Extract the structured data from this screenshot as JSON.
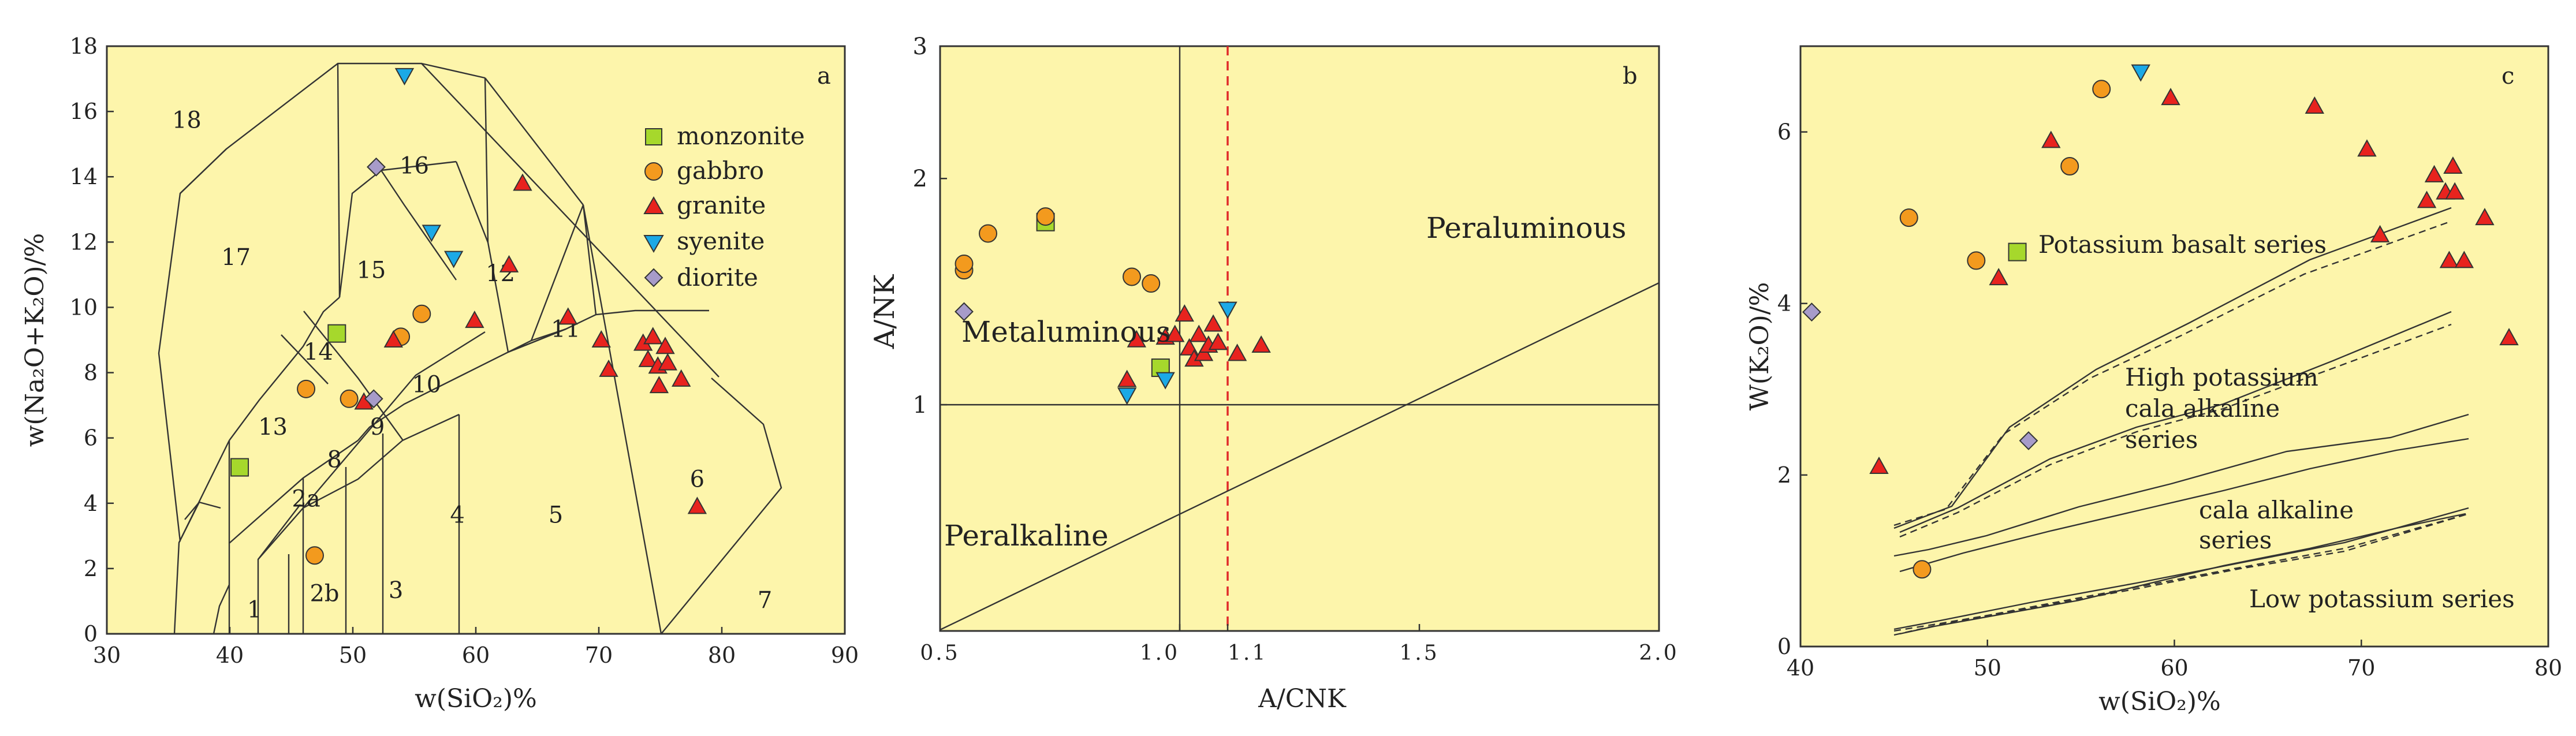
{
  "colors": {
    "plot_bg": "#fdf5ab",
    "monzonite": "#a6d82c",
    "gabbro": "#f39a1e",
    "granite": "#e8231e",
    "syenite": "#1ba9e6",
    "diorite": "#a79bc9"
  },
  "chart_data": [
    {
      "type": "scatter",
      "panel": "a",
      "xlabel": "w(SiO₂)%",
      "ylabel": "w(Na₂O+K₂O)/%",
      "xlim": [
        30,
        90
      ],
      "ylim": [
        0,
        18
      ],
      "xticks": [
        "30",
        "40",
        "50",
        "60",
        "70",
        "80",
        "90"
      ],
      "yticks": [
        "0",
        "2",
        "4",
        "6",
        "8",
        "10",
        "12",
        "14",
        "16",
        "18"
      ],
      "legend": [
        {
          "label": "monzonite",
          "marker": "square"
        },
        {
          "label": "gabbro",
          "marker": "circle"
        },
        {
          "label": "granite",
          "marker": "triangle"
        },
        {
          "label": "syenite",
          "marker": "triangle-down"
        },
        {
          "label": "diorite",
          "marker": "diamond"
        }
      ],
      "field_labels": [
        {
          "text": "18",
          "x": 36.5,
          "y": 15.5
        },
        {
          "text": "17",
          "x": 40.5,
          "y": 11.3
        },
        {
          "text": "16",
          "x": 55,
          "y": 14.1
        },
        {
          "text": "15",
          "x": 51.5,
          "y": 10.9
        },
        {
          "text": "14",
          "x": 47.2,
          "y": 8.4
        },
        {
          "text": "13",
          "x": 43.5,
          "y": 6.1
        },
        {
          "text": "12",
          "x": 62,
          "y": 10.8
        },
        {
          "text": "11",
          "x": 67.3,
          "y": 9.1
        },
        {
          "text": "10",
          "x": 56,
          "y": 7.4
        },
        {
          "text": "9",
          "x": 52,
          "y": 6.1
        },
        {
          "text": "8",
          "x": 48.5,
          "y": 5.1
        },
        {
          "text": "2a",
          "x": 46.2,
          "y": 3.9
        },
        {
          "text": "2b",
          "x": 47.7,
          "y": 1.0
        },
        {
          "text": "1",
          "x": 42,
          "y": 0.5
        },
        {
          "text": "3",
          "x": 53.5,
          "y": 1.1
        },
        {
          "text": "4",
          "x": 58.5,
          "y": 3.4
        },
        {
          "text": "5",
          "x": 66.5,
          "y": 3.4
        },
        {
          "text": "6",
          "x": 78,
          "y": 4.5
        },
        {
          "text": "7",
          "x": 83.5,
          "y": 0.8
        }
      ],
      "series": [
        {
          "name": "monzonite",
          "points": [
            [
              40.8,
              5.1
            ],
            [
              48.7,
              9.2
            ]
          ]
        },
        {
          "name": "gabbro",
          "points": [
            [
              46.2,
              7.5
            ],
            [
              49.7,
              7.2
            ],
            [
              53.9,
              9.1
            ],
            [
              55.6,
              9.8
            ],
            [
              46.9,
              2.4
            ]
          ]
        },
        {
          "name": "granite",
          "points": [
            [
              50.9,
              7.1
            ],
            [
              53.3,
              9.0
            ],
            [
              59.9,
              9.6
            ],
            [
              62.7,
              11.3
            ],
            [
              63.8,
              13.8
            ],
            [
              67.5,
              9.7
            ],
            [
              70.2,
              9.0
            ],
            [
              70.8,
              8.1
            ],
            [
              73.6,
              8.9
            ],
            [
              74.0,
              8.4
            ],
            [
              74.4,
              9.1
            ],
            [
              74.8,
              8.2
            ],
            [
              74.9,
              7.6
            ],
            [
              75.4,
              8.8
            ],
            [
              75.6,
              8.3
            ],
            [
              76.7,
              7.8
            ],
            [
              78.0,
              3.9
            ]
          ]
        },
        {
          "name": "syenite",
          "points": [
            [
              54.2,
              17.1
            ],
            [
              56.4,
              12.3
            ],
            [
              58.2,
              11.5
            ]
          ]
        },
        {
          "name": "diorite",
          "points": [
            [
              51.9,
              14.3
            ],
            [
              51.7,
              7.2
            ]
          ]
        }
      ]
    },
    {
      "type": "scatter",
      "panel": "b",
      "xlabel": "A/CNK",
      "ylabel": "A/NK",
      "xlim": [
        0.5,
        2.0
      ],
      "ylim": [
        0.5,
        3.0
      ],
      "yscale": "log",
      "xticks": [
        "0.5",
        "1.0",
        "1.1",
        "1.5",
        "2.0"
      ],
      "yticks": [
        "1",
        "2",
        "3"
      ],
      "field_labels": [
        "Peraluminous",
        "Metaluminous",
        "Peralkaline"
      ],
      "reference_lines": {
        "A/CNK": [
          1.0,
          1.1
        ],
        "A/NK": [
          1.0
        ]
      },
      "series": [
        {
          "name": "monzonite",
          "points": [
            [
              0.72,
              1.75
            ],
            [
              0.96,
              1.12
            ]
          ]
        },
        {
          "name": "gabbro",
          "points": [
            [
              0.55,
              1.51
            ],
            [
              0.55,
              1.54
            ],
            [
              0.6,
              1.69
            ],
            [
              0.72,
              1.78
            ],
            [
              0.9,
              1.48
            ],
            [
              0.94,
              1.45
            ]
          ]
        },
        {
          "name": "granite",
          "points": [
            [
              0.89,
              1.08
            ],
            [
              0.91,
              1.22
            ],
            [
              0.97,
              1.23
            ],
            [
              0.99,
              1.24
            ],
            [
              1.01,
              1.32
            ],
            [
              1.02,
              1.19
            ],
            [
              1.03,
              1.15
            ],
            [
              1.04,
              1.24
            ],
            [
              1.05,
              1.17
            ],
            [
              1.06,
              1.2
            ],
            [
              1.07,
              1.28
            ],
            [
              1.08,
              1.21
            ],
            [
              1.12,
              1.17
            ],
            [
              1.17,
              1.2
            ]
          ]
        },
        {
          "name": "syenite",
          "points": [
            [
              0.89,
              1.03
            ],
            [
              0.97,
              1.08
            ],
            [
              1.1,
              1.34
            ]
          ]
        },
        {
          "name": "diorite",
          "points": [
            [
              0.55,
              1.33
            ]
          ]
        }
      ]
    },
    {
      "type": "scatter",
      "panel": "c",
      "xlabel": "w(SiO₂)%",
      "ylabel": "W(K₂O)/%",
      "xlim": [
        40,
        80
      ],
      "ylim": [
        0,
        7
      ],
      "xticks": [
        "40",
        "50",
        "60",
        "70",
        "80"
      ],
      "yticks": [
        "0",
        "2",
        "4",
        "6"
      ],
      "field_labels": [
        "Potassium  basalt series",
        "High potassium",
        "cala alkaline",
        "series",
        "cala alkaline",
        "series",
        "Low potassium  series"
      ],
      "series": [
        {
          "name": "monzonite",
          "points": [
            [
              51.6,
              4.6
            ]
          ]
        },
        {
          "name": "gabbro",
          "points": [
            [
              45.8,
              5.0
            ],
            [
              46.5,
              0.9
            ],
            [
              49.4,
              4.5
            ],
            [
              54.4,
              5.6
            ],
            [
              56.1,
              6.5
            ]
          ]
        },
        {
          "name": "granite",
          "points": [
            [
              44.2,
              2.1
            ],
            [
              50.6,
              4.3
            ],
            [
              53.4,
              5.9
            ],
            [
              59.8,
              6.4
            ],
            [
              67.5,
              6.3
            ],
            [
              70.3,
              5.8
            ],
            [
              71.0,
              4.8
            ],
            [
              73.5,
              5.2
            ],
            [
              73.9,
              5.5
            ],
            [
              74.5,
              5.3
            ],
            [
              74.7,
              4.5
            ],
            [
              74.9,
              5.6
            ],
            [
              75.0,
              5.3
            ],
            [
              75.5,
              4.5
            ],
            [
              76.6,
              5.0
            ],
            [
              77.9,
              3.6
            ]
          ]
        },
        {
          "name": "syenite",
          "points": [
            [
              58.2,
              6.7
            ]
          ]
        },
        {
          "name": "diorite",
          "points": [
            [
              40.6,
              3.9
            ],
            [
              52.2,
              2.4
            ]
          ]
        }
      ]
    }
  ]
}
